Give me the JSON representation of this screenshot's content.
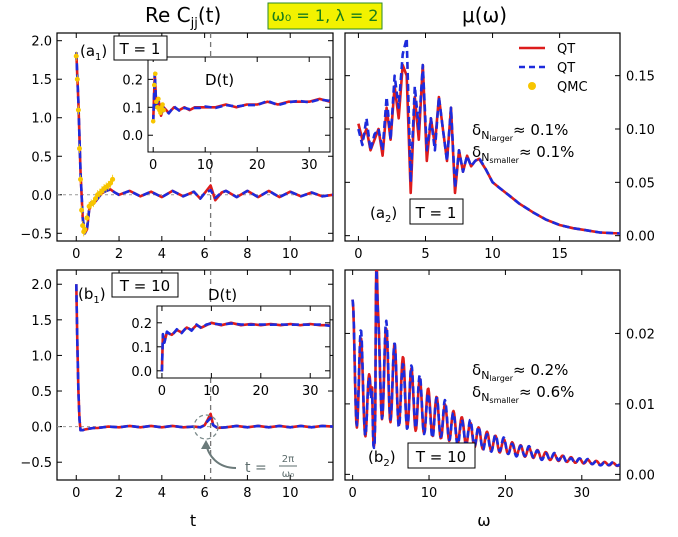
{
  "header": {
    "left_title": "Re C",
    "left_title_sub": "jj",
    "left_title_arg": "(t)",
    "center_badge": "ω₀ = 1, λ = 2",
    "right_title": "μ(ω)"
  },
  "colors": {
    "qt_solid": "#dd1c1c",
    "qt_dashed": "#1d2bdc",
    "qmc": "#f7c500",
    "badge_bg": "#f2f200",
    "badge_border": "#2a8a2a",
    "badge_text": "#1a7d1a"
  },
  "chart_data": [
    {
      "id": "a1",
      "type": "line",
      "panel_label": "(a",
      "panel_label_sub": "1",
      "panel_label_close": ")",
      "temp_label": "T = 1",
      "xlim": [
        -0.9,
        12
      ],
      "ylim": [
        -0.6,
        2.1
      ],
      "xticks": [
        0,
        2,
        4,
        6,
        8,
        10
      ],
      "xticklabels": [
        "0",
        "2",
        "4",
        "6",
        "8",
        "10"
      ],
      "yticks": [
        -0.5,
        0,
        0.5,
        1,
        1.5,
        2
      ],
      "yticklabels": [
        "−0.5",
        "0.0",
        "0.5",
        "1.0",
        "1.5",
        "2.0"
      ],
      "series": [
        {
          "name": "QT",
          "style": "solid",
          "color": "#dd1c1c",
          "x": [
            0,
            0.1,
            0.2,
            0.3,
            0.4,
            0.5,
            0.6,
            0.7,
            0.8,
            1.0,
            1.2,
            1.4,
            1.6,
            1.8,
            2.0,
            2.5,
            3,
            3.5,
            4,
            4.5,
            5,
            5.5,
            5.8,
            6.0,
            6.28,
            6.5,
            6.8,
            7,
            7.5,
            8,
            8.5,
            9,
            9.5,
            10,
            10.5,
            11,
            11.5,
            12
          ],
          "y": [
            1.85,
            1.2,
            0.3,
            -0.3,
            -0.5,
            -0.45,
            -0.2,
            -0.1,
            -0.12,
            -0.05,
            0.02,
            0.05,
            0.07,
            0.03,
            0.0,
            0.05,
            -0.02,
            0.04,
            -0.03,
            0.05,
            -0.02,
            0.04,
            -0.05,
            0.02,
            0.12,
            -0.07,
            0.03,
            0.05,
            -0.03,
            0.05,
            -0.03,
            0.05,
            -0.03,
            0.04,
            -0.02,
            0.03,
            -0.02,
            0.0
          ]
        },
        {
          "name": "QT",
          "style": "dashed",
          "color": "#1d2bdc",
          "x": [
            0,
            0.1,
            0.2,
            0.3,
            0.4,
            0.5,
            0.6,
            0.7,
            0.8,
            1.0,
            1.2,
            1.4,
            1.6,
            1.8,
            2.0,
            2.5,
            3,
            3.5,
            4,
            4.5,
            5,
            5.5,
            5.8,
            6.0,
            6.28,
            6.5,
            6.8,
            7,
            7.5,
            8,
            8.5,
            9,
            9.5,
            10,
            10.5,
            11,
            11.5,
            12
          ],
          "y": [
            1.85,
            1.2,
            0.3,
            -0.3,
            -0.5,
            -0.45,
            -0.2,
            -0.1,
            -0.12,
            -0.05,
            0.02,
            0.05,
            0.07,
            0.03,
            0.0,
            0.05,
            -0.02,
            0.04,
            -0.03,
            0.05,
            -0.02,
            0.04,
            -0.05,
            0.02,
            0.06,
            -0.04,
            0.03,
            0.05,
            -0.03,
            0.05,
            -0.03,
            0.05,
            -0.03,
            0.04,
            -0.02,
            0.03,
            -0.02,
            0.0
          ]
        },
        {
          "name": "QMC",
          "style": "points",
          "color": "#f7c500",
          "x": [
            0.0,
            0.05,
            0.1,
            0.15,
            0.2,
            0.25,
            0.3,
            0.35,
            0.4,
            0.5,
            0.6,
            0.7,
            0.8,
            0.9,
            1.0,
            1.1,
            1.2,
            1.3,
            1.4,
            1.5,
            1.6,
            1.7
          ],
          "y": [
            1.8,
            1.5,
            1.1,
            0.6,
            0.2,
            -0.2,
            -0.4,
            -0.48,
            -0.45,
            -0.3,
            -0.15,
            -0.12,
            -0.1,
            -0.05,
            0.0,
            0.02,
            0.05,
            0.08,
            0.1,
            0.12,
            0.15,
            0.2
          ]
        }
      ],
      "inset": {
        "label": "D(t)",
        "xlim": [
          -1,
          34
        ],
        "ylim": [
          -0.06,
          0.28
        ],
        "xticks": [
          0,
          10,
          20,
          30
        ],
        "xticklabels": [
          "0",
          "10",
          "20",
          "30"
        ],
        "yticks": [
          0,
          0.1,
          0.2
        ],
        "yticklabels": [
          "0.0",
          "0.1",
          "0.2"
        ],
        "x": [
          0,
          0.3,
          0.6,
          1,
          1.5,
          2,
          3,
          4,
          5,
          6,
          7,
          8,
          9,
          10,
          12,
          14,
          16,
          18,
          20,
          22,
          24,
          26,
          28,
          30,
          32,
          34
        ],
        "y": [
          0.05,
          0.22,
          0.1,
          0.13,
          0.07,
          0.1,
          0.08,
          0.1,
          0.09,
          0.1,
          0.09,
          0.1,
          0.1,
          0.1,
          0.1,
          0.11,
          0.1,
          0.11,
          0.11,
          0.12,
          0.11,
          0.12,
          0.12,
          0.12,
          0.13,
          0.12
        ],
        "qmc_x": [
          0,
          0.2,
          0.4,
          0.6,
          0.8,
          1.0,
          1.2,
          1.4,
          1.6,
          1.8,
          2.0
        ],
        "qmc_y": [
          0.05,
          0.18,
          0.22,
          0.12,
          0.1,
          0.13,
          0.09,
          0.08,
          0.1,
          0.11,
          0.09
        ]
      }
    },
    {
      "id": "a2",
      "type": "line",
      "panel_label": "(a",
      "panel_label_sub": "2",
      "panel_label_close": ")",
      "temp_label": "T = 1",
      "xlim": [
        -1,
        19.5
      ],
      "ylim": [
        -0.005,
        0.19
      ],
      "xticks": [
        0,
        5,
        10,
        15
      ],
      "xticklabels": [
        "0",
        "5",
        "10",
        "15"
      ],
      "yticks": [
        0,
        0.05,
        0.1,
        0.15
      ],
      "yticklabels": [
        "0.00",
        "0.05",
        "0.10",
        "0.15"
      ],
      "legend": [
        {
          "label": "QT",
          "style": "solid",
          "color": "#dd1c1c"
        },
        {
          "label": "QT",
          "style": "dashed",
          "color": "#1d2bdc"
        },
        {
          "label": "QMC",
          "style": "point",
          "color": "#f7c500"
        }
      ],
      "annotation_1": "≈ 0.1%",
      "annotation_2": "≈ 0.1%",
      "annotation_sub_1": "N",
      "annotation_subsub_1": "larger",
      "annotation_sub_2": "N",
      "annotation_subsub_2": "smaller",
      "x": [
        0,
        0.3,
        0.6,
        0.9,
        1.2,
        1.5,
        1.8,
        2.1,
        2.4,
        2.7,
        3.0,
        3.3,
        3.6,
        3.9,
        4.2,
        4.5,
        4.8,
        5.1,
        5.4,
        5.7,
        6.0,
        6.3,
        6.6,
        6.9,
        7.2,
        7.5,
        7.8,
        8.1,
        8.4,
        8.7,
        9.0,
        9.5,
        10,
        10.5,
        11,
        11.5,
        12,
        13,
        14,
        15,
        16,
        17,
        18,
        19.5
      ],
      "y_red": [
        0.105,
        0.09,
        0.1,
        0.08,
        0.09,
        0.1,
        0.075,
        0.12,
        0.09,
        0.14,
        0.11,
        0.16,
        0.15,
        0.04,
        0.13,
        0.09,
        0.16,
        0.07,
        0.11,
        0.085,
        0.13,
        0.1,
        0.07,
        0.12,
        0.04,
        0.08,
        0.06,
        0.075,
        0.065,
        0.07,
        0.072,
        0.062,
        0.05,
        0.045,
        0.04,
        0.035,
        0.03,
        0.022,
        0.015,
        0.01,
        0.007,
        0.005,
        0.003,
        0.002
      ],
      "y_blue": [
        0.1,
        0.085,
        0.11,
        0.08,
        0.095,
        0.1,
        0.08,
        0.13,
        0.09,
        0.15,
        0.12,
        0.17,
        0.185,
        0.05,
        0.14,
        0.1,
        0.16,
        0.08,
        0.11,
        0.08,
        0.13,
        0.1,
        0.07,
        0.12,
        0.045,
        0.08,
        0.06,
        0.075,
        0.065,
        0.07,
        0.073,
        0.062,
        0.05,
        0.045,
        0.04,
        0.035,
        0.03,
        0.022,
        0.015,
        0.01,
        0.007,
        0.005,
        0.003,
        0.002
      ]
    },
    {
      "id": "b1",
      "type": "line",
      "panel_label": "(b",
      "panel_label_sub": "1",
      "panel_label_close": ")",
      "temp_label": "T = 10",
      "xlabel": "t",
      "xlim": [
        -0.9,
        12
      ],
      "ylim": [
        -0.75,
        2.2
      ],
      "xticks": [
        0,
        2,
        4,
        6,
        8,
        10
      ],
      "xticklabels": [
        "0",
        "2",
        "4",
        "6",
        "8",
        "10"
      ],
      "yticks": [
        -0.5,
        0,
        0.5,
        1,
        1.5,
        2
      ],
      "yticklabels": [
        "−0.5",
        "0.0",
        "0.5",
        "1.0",
        "1.5",
        "2.0"
      ],
      "period_label": "t =",
      "period_num": "2π",
      "period_den": "ω₀",
      "x": [
        0,
        0.05,
        0.1,
        0.15,
        0.2,
        0.3,
        0.4,
        0.6,
        0.8,
        1,
        1.5,
        2,
        2.5,
        3,
        3.5,
        4,
        4.5,
        5,
        5.5,
        5.8,
        6.0,
        6.15,
        6.28,
        6.4,
        6.6,
        7,
        7.5,
        8,
        8.5,
        9,
        9.5,
        10,
        10.5,
        11,
        11.5,
        12
      ],
      "y_red": [
        2.0,
        1.2,
        0.5,
        0.1,
        -0.05,
        -0.05,
        -0.04,
        -0.03,
        -0.02,
        -0.02,
        0.0,
        -0.01,
        0.01,
        -0.01,
        0.01,
        -0.01,
        0.01,
        -0.01,
        0.0,
        -0.01,
        0.02,
        0.1,
        0.18,
        0.02,
        -0.02,
        -0.01,
        0.01,
        -0.01,
        0.01,
        -0.01,
        0.01,
        -0.01,
        0.01,
        -0.01,
        0.01,
        0.0
      ],
      "y_blue": [
        2.0,
        1.2,
        0.5,
        0.1,
        -0.05,
        -0.05,
        -0.04,
        -0.03,
        -0.02,
        -0.02,
        0.0,
        -0.01,
        0.01,
        -0.01,
        0.01,
        -0.01,
        0.01,
        -0.01,
        0.0,
        -0.01,
        0.02,
        0.08,
        0.12,
        0.02,
        -0.02,
        -0.01,
        0.01,
        -0.01,
        0.01,
        -0.01,
        0.01,
        -0.01,
        0.01,
        -0.01,
        0.01,
        0.0
      ],
      "inset": {
        "label": "D(t)",
        "xlim": [
          -1,
          34
        ],
        "ylim": [
          -0.03,
          0.27
        ],
        "xticks": [
          0,
          10,
          20,
          30
        ],
        "xticklabels": [
          "0",
          "10",
          "20",
          "30"
        ],
        "yticks": [
          0,
          0.1,
          0.2
        ],
        "yticklabels": [
          "0.0",
          "0.1",
          "0.2"
        ],
        "x": [
          0,
          0.2,
          0.5,
          1,
          2,
          3,
          4,
          5,
          6,
          7,
          8,
          9,
          10,
          12,
          14,
          16,
          18,
          20,
          22,
          24,
          26,
          28,
          30,
          32,
          34
        ],
        "y": [
          0.0,
          0.15,
          0.12,
          0.16,
          0.15,
          0.17,
          0.16,
          0.18,
          0.17,
          0.19,
          0.18,
          0.19,
          0.2,
          0.19,
          0.2,
          0.19,
          0.195,
          0.19,
          0.195,
          0.19,
          0.195,
          0.19,
          0.195,
          0.19,
          0.19
        ]
      }
    },
    {
      "id": "b2",
      "type": "line",
      "panel_label": "(b",
      "panel_label_sub": "2",
      "panel_label_close": ")",
      "temp_label": "T = 10",
      "xlabel": "ω",
      "xlim": [
        -1,
        35
      ],
      "ylim": [
        -0.0008,
        0.029
      ],
      "xticks": [
        0,
        10,
        20,
        30
      ],
      "xticklabels": [
        "0",
        "10",
        "20",
        "30"
      ],
      "yticks": [
        0,
        0.01,
        0.02
      ],
      "yticklabels": [
        "0.00",
        "0.01",
        "0.02"
      ],
      "annotation_1": "≈ 0.2%",
      "annotation_2": "≈ 0.6%",
      "annotation_sub_1": "N",
      "annotation_subsub_1": "larger",
      "annotation_sub_2": "N",
      "annotation_subsub_2": "smaller"
    }
  ]
}
